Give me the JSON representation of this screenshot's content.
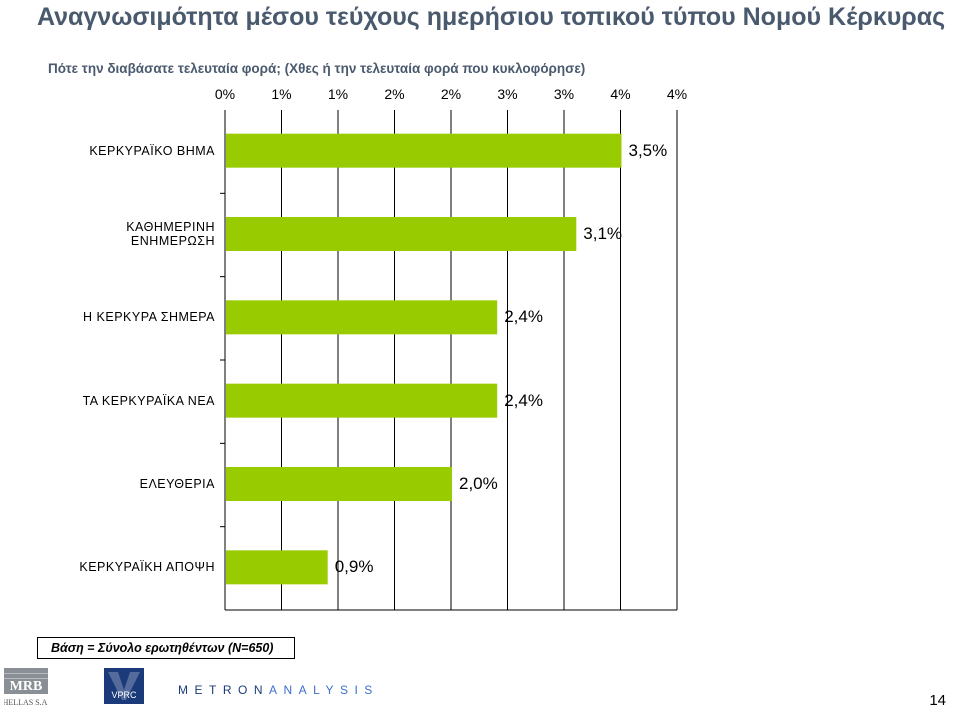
{
  "header": {
    "title": "Αναγνωσιμότητα μέσου τεύχους ημερήσιου τοπικού τύπου Νομού Κέρκυρας",
    "subtitle": "Πότε την διαβάσατε τελευταία φορά; (Χθες ή την τελευταία φορά που κυκλοφόρησε)"
  },
  "chart_data": {
    "type": "bar",
    "orientation": "horizontal",
    "categories": [
      "ΚΕΡΚΥΡΑΪΚΟ ΒΗΜΑ",
      "ΚΑΘΗΜΕΡΙΝΗ ΕΝΗΜΕΡΩΣΗ",
      "Η ΚΕΡΚΥΡΑ ΣΗΜΕΡΑ",
      "ΤΑ ΚΕΡΚΥΡΑΪΚΑ ΝΕΑ",
      "ΕΛΕΥΘΕΡΙΑ",
      "ΚΕΡΚΥΡΑΪΚΗ ΑΠΟΨΗ"
    ],
    "values": [
      3.5,
      3.1,
      2.4,
      2.4,
      2.0,
      0.9
    ],
    "value_labels": [
      "3,5%",
      "3,1%",
      "2,4%",
      "2,4%",
      "2,0%",
      "0,9%"
    ],
    "tick_labels": [
      "0%",
      "1%",
      "1%",
      "2%",
      "2%",
      "3%",
      "3%",
      "4%",
      "4%"
    ],
    "xlim": [
      0,
      4
    ],
    "bar_color": "#99cc00",
    "grid": true,
    "xaxis_position": "top"
  },
  "footer": {
    "base_note": "Βάση = Σύνολο ερωτηθέντων (Ν=650)",
    "logos": {
      "mrb_text": "MRB",
      "mrb_subtext": "HELLAS S.A.",
      "vprc_text": "VPRC",
      "metron_a": "METRON",
      "metron_b": "ANALYSIS"
    },
    "page_number": "14"
  }
}
